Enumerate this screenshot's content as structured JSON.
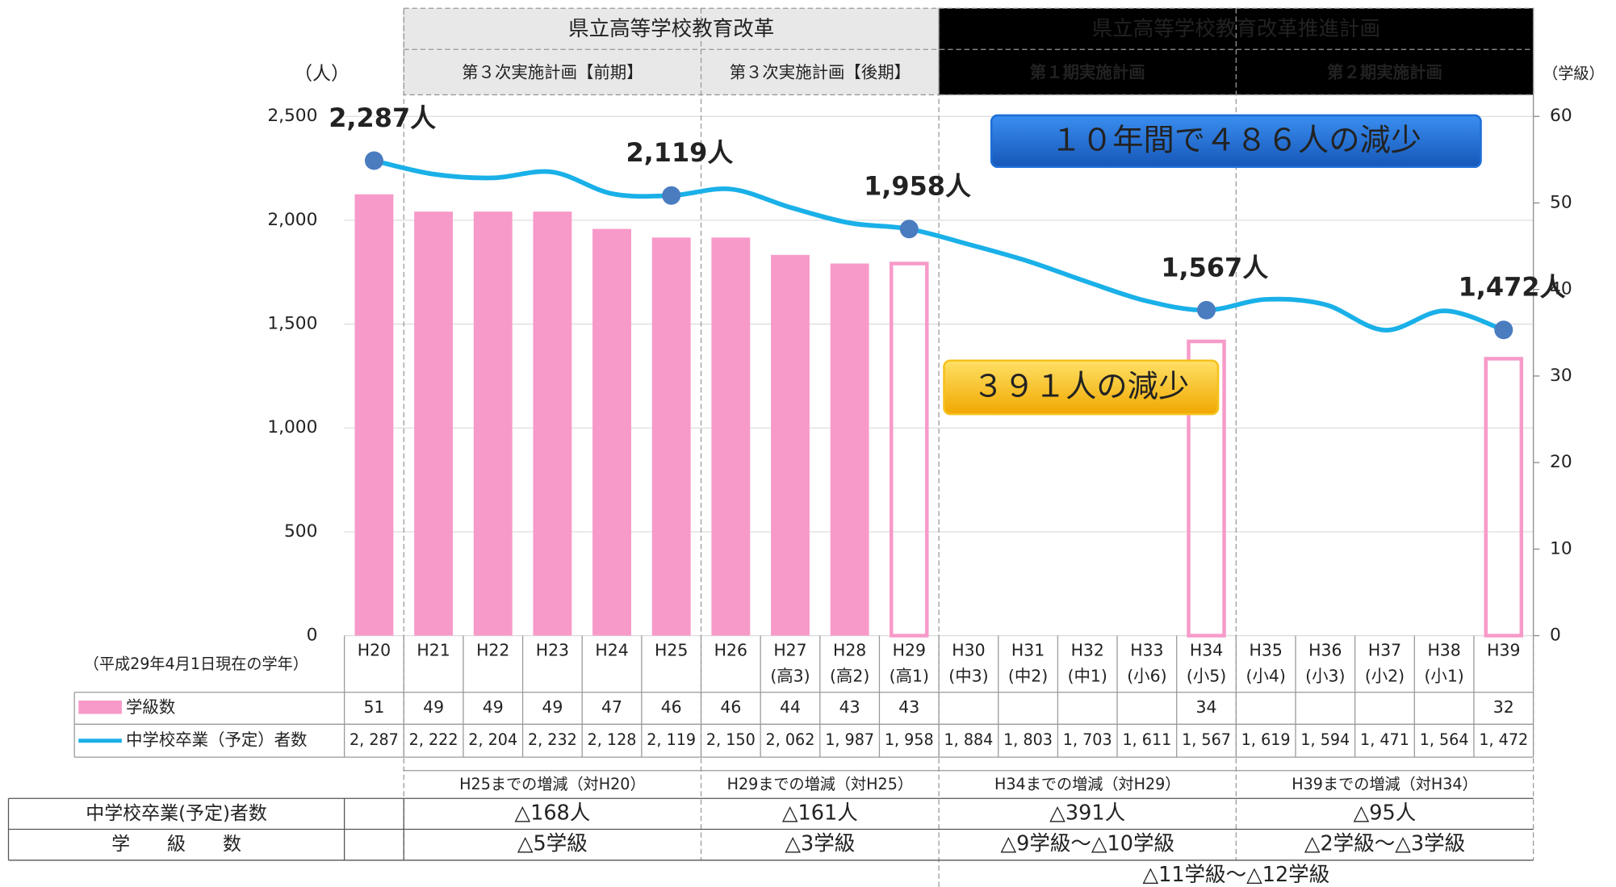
{
  "chart_data": {
    "type": "combo",
    "categories": [
      "H20",
      "H21",
      "H22",
      "H23",
      "H24",
      "H25",
      "H26",
      "H27",
      "H28",
      "H29",
      "H30",
      "H31",
      "H32",
      "H33",
      "H34",
      "H35",
      "H36",
      "H37",
      "H38",
      "H39"
    ],
    "category_sublabels": [
      null,
      null,
      null,
      null,
      null,
      null,
      null,
      "(高3)",
      "(高2)",
      "(高1)",
      "(中3)",
      "(中2)",
      "(中1)",
      "(小6)",
      "(小5)",
      "(小4)",
      "(小3)",
      "(小2)",
      "(小1)",
      null
    ],
    "note": "（平成29年4月1日現在の学年）",
    "ylabel": "（人）",
    "y2label": "（学級）",
    "ylim": [
      0,
      2500
    ],
    "yticks": [
      0,
      500,
      {
        "value": 1000,
        "label": "1,000"
      },
      {
        "value": 1500,
        "label": "1,500"
      },
      {
        "value": 2000,
        "label": "2,000"
      },
      {
        "value": 2500,
        "label": "2,500"
      }
    ],
    "y2lim": [
      0,
      60
    ],
    "y2ticks": [
      0,
      10,
      20,
      30,
      40,
      50,
      60
    ],
    "grid": true,
    "series": [
      {
        "name": "学級数",
        "type": "bar",
        "axis": "y2",
        "color": "#f79ac9",
        "values": [
          51,
          49,
          49,
          49,
          47,
          46,
          46,
          44,
          43,
          43,
          null,
          null,
          null,
          null,
          34,
          null,
          null,
          null,
          null,
          32
        ],
        "hollow": [
          false,
          false,
          false,
          false,
          false,
          false,
          false,
          false,
          false,
          true,
          false,
          false,
          false,
          false,
          true,
          false,
          false,
          false,
          false,
          true
        ]
      },
      {
        "name": "中学校卒業（予定）者数",
        "type": "line",
        "color": "#1ab0e8",
        "marker_color": "#4a7cc0",
        "values": [
          2287,
          2222,
          2204,
          2232,
          2128,
          2119,
          2150,
          2062,
          1987,
          1958,
          1884,
          1803,
          1703,
          1611,
          1567,
          1619,
          1594,
          1471,
          1564,
          1472
        ],
        "value_labels": [
          "2, 287",
          "2, 222",
          "2, 204",
          "2, 232",
          "2, 128",
          "2, 119",
          "2, 150",
          "2, 062",
          "1, 987",
          "1, 958",
          "1, 884",
          "1, 803",
          "1, 703",
          "1, 611",
          "1, 567",
          "1, 619",
          "1, 594",
          "1, 471",
          "1, 564",
          "1, 472"
        ],
        "point_labels": [
          "2,287人",
          null,
          null,
          null,
          null,
          "2,119人",
          null,
          null,
          null,
          "1,958人",
          null,
          null,
          null,
          null,
          "1,567人",
          null,
          null,
          null,
          null,
          "1,472人"
        ]
      }
    ],
    "callouts": [
      {
        "text": "１０年間で４８６人の減少",
        "color": "#1e6fd6"
      },
      {
        "text": "３９１人の減少",
        "color": "#f6c11c"
      }
    ]
  },
  "periods": {
    "top": [
      "県立高等学校教育改革",
      "県立高等学校教育改革推進計画"
    ],
    "sub": [
      "第３次実施計画【前期】",
      "第３次実施計画【後期】",
      "第１期実施計画",
      "第２期実施計画"
    ]
  },
  "summary": {
    "headers": [
      "H25までの増減（対H20）",
      "H29までの増減（対H25）",
      "H34までの増減（対H29）",
      "H39までの増減（対H34）"
    ],
    "rows": [
      {
        "label": "中学校卒業(予定)者数",
        "cells": [
          "△168人",
          "△161人",
          "△391人",
          "△95人"
        ]
      },
      {
        "label": "学　　級　　数",
        "cells": [
          "△5学級",
          "△3学級",
          "△9学級～△10学級",
          "△2学級～△3学級"
        ]
      }
    ],
    "footer": "△11学級～△12学級"
  }
}
